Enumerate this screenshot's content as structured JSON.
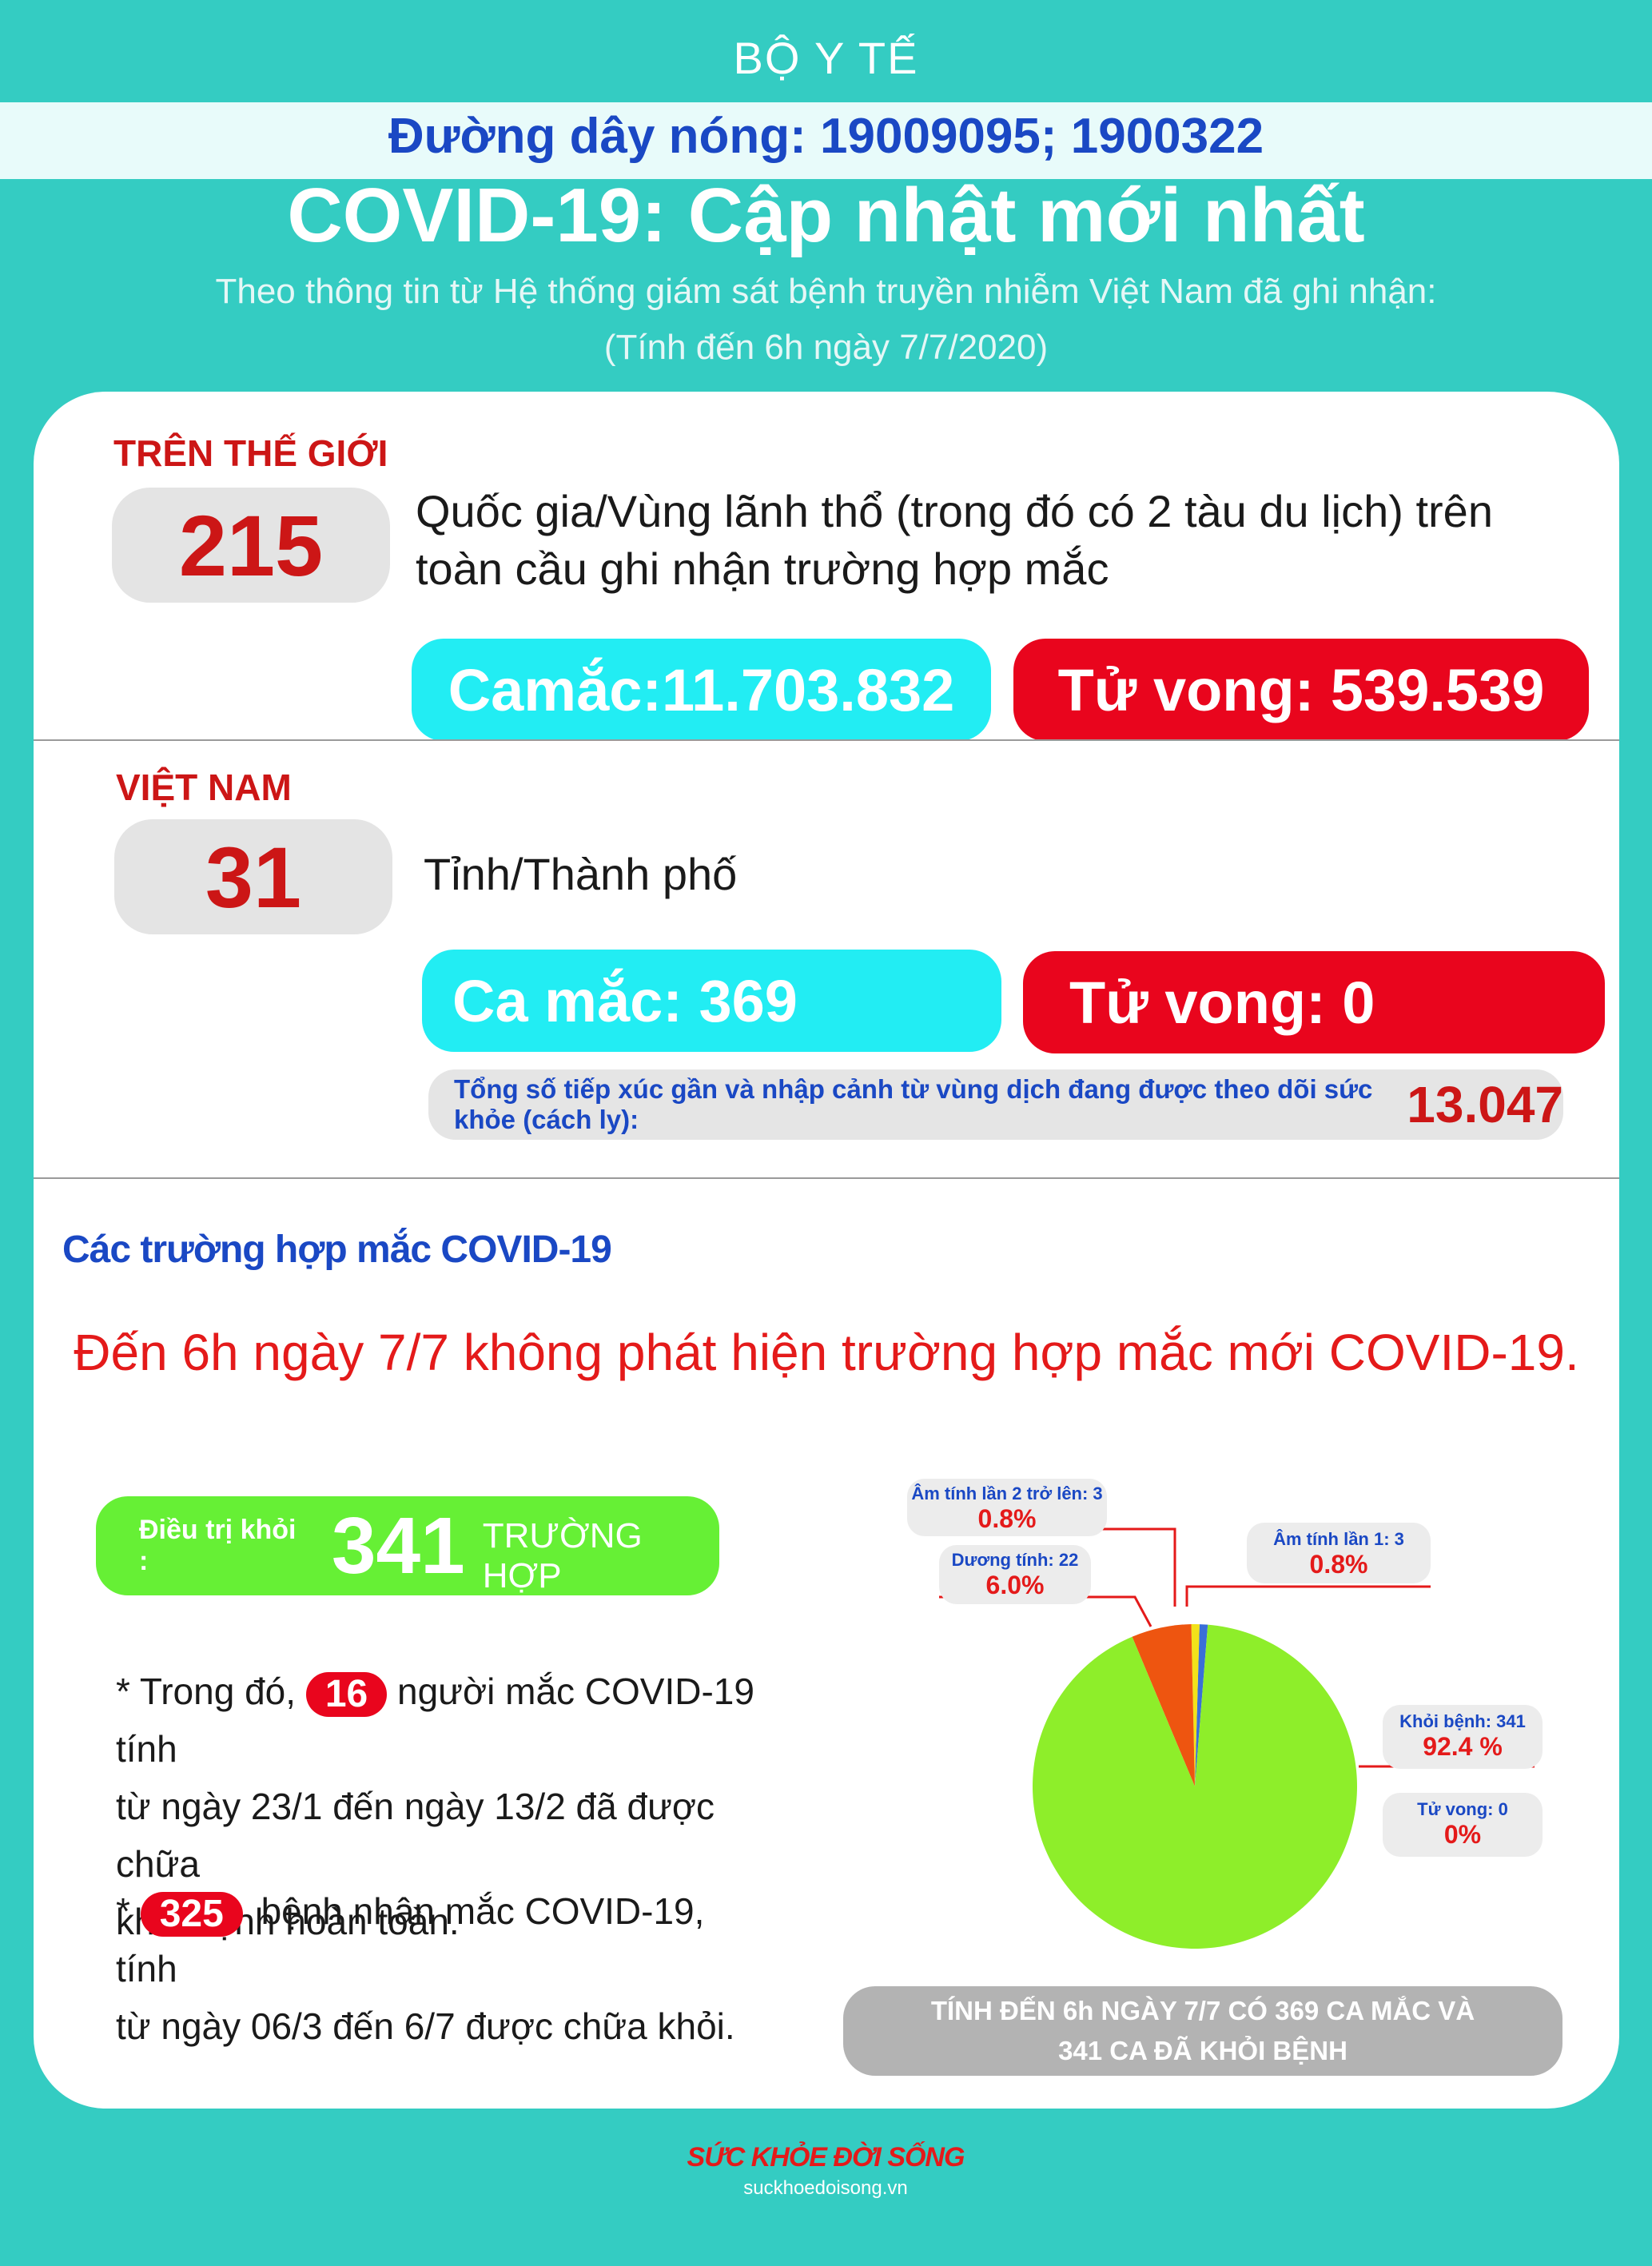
{
  "header": {
    "agency": "BỘ Y TẾ",
    "hotline": "Đường dây nóng: 19009095; 1900322",
    "title": "COVID-19: Cập nhật mới nhất",
    "subtitle": "Theo thông tin từ Hệ thống giám sát bệnh truyền nhiễm Việt Nam đã ghi nhận:",
    "date_note": "(Tính đến 6h ngày 7/7/2020)"
  },
  "world": {
    "label": "TRÊN THẾ GIỚI",
    "count": "215",
    "description": "Quốc gia/Vùng lãnh thổ (trong đó có 2 tàu du lịch) trên toàn cầu ghi nhận trường hợp mắc",
    "cases": "Camắc:11.703.832",
    "deaths": "Tử vong:  539.539"
  },
  "vietnam": {
    "label": "VIỆT NAM",
    "count": "31",
    "description": "Tỉnh/Thành phố",
    "cases": "Ca mắc: 369",
    "deaths": "Tử vong:  0",
    "contacts_label": "Tổng số tiếp xúc gần và nhập cảnh từ vùng dịch đang được theo dõi sức khỏe (cách ly):",
    "contacts_value": "13.047"
  },
  "cases_section": {
    "title": "Các trường hợp mắc COVID-19",
    "headline": "Đến 6h ngày 7/7 không phát hiện trường hợp mắc mới COVID-19.",
    "recovered_label": "Điều trị khỏi :",
    "recovered_value": "341",
    "recovered_unit": "TRƯỜNG HỢP",
    "note1_prefix": "* Trong đó,",
    "note1_badge": "16",
    "note1_rest_line1": "người mắc COVID-19 tính",
    "note1_line2": "từ ngày 23/1 đến ngày 13/2 đã được chữa",
    "note1_line3": "khỏi bệnh hoàn toàn.",
    "note2_prefix": "*",
    "note2_badge": "325",
    "note2_rest_line1": "bệnh nhân  mắc COVID-19, tính",
    "note2_line2": "từ ngày 06/3 đến 6/7 được chữa khỏi."
  },
  "chart_data": {
    "type": "pie",
    "slices": [
      {
        "label": "Khỏi bệnh: 341",
        "value": 341,
        "percent_text": "92.4 %",
        "color": "#8eee2a"
      },
      {
        "label": "Dương tính: 22",
        "value": 22,
        "percent_text": "6.0%",
        "color": "#ee5510"
      },
      {
        "label": "Âm tính lần 2 trở lên: 3",
        "value": 3,
        "percent_text": "0.8%",
        "color": "#f2e21a"
      },
      {
        "label": "Âm tính lần 1: 3",
        "value": 3,
        "percent_text": "0.8%",
        "color": "#3a6fd8"
      },
      {
        "label": "Tử vong: 0",
        "value": 0,
        "percent_text": "0%",
        "color": "#e41a1a"
      }
    ]
  },
  "footer": {
    "summary_line1": "TÍNH ĐẾN 6h NGÀY 7/7 CÓ 369 CA MẮC VÀ",
    "summary_line2": "341 CA ĐÃ KHỎI BỆNH",
    "logo": "SỨC KHỎE ĐỜI SỐNG",
    "url": "suckhoedoisong.vn"
  },
  "colors": {
    "background": "#34ccc2",
    "accent_red": "#e9051d",
    "accent_cyan": "#22edf3",
    "accent_green": "#66f035",
    "accent_blue": "#1a48c4"
  }
}
